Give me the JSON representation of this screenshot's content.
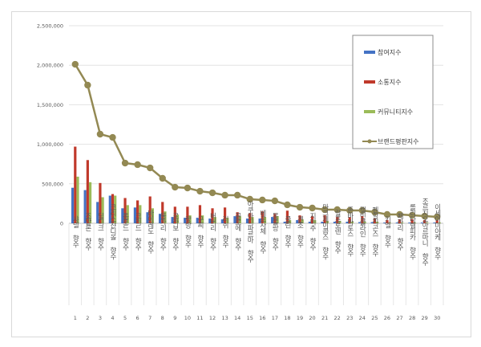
{
  "chart_data": {
    "type": "bar",
    "ylim": [
      0,
      2500000
    ],
    "yticks": [
      "0",
      "500,000",
      "1,000,000",
      "1,500,000",
      "2,000,000",
      "2,500,000"
    ],
    "grid": true,
    "legend_position": "top-right",
    "categories": [
      "1",
      "2",
      "3",
      "4",
      "5",
      "6",
      "7",
      "8",
      "9",
      "10",
      "11",
      "12",
      "13",
      "14",
      "15",
      "16",
      "17",
      "18",
      "19",
      "20",
      "21",
      "22",
      "23",
      "24",
      "25",
      "26",
      "27",
      "28",
      "29",
      "30"
    ],
    "category_names": [
      "샤넬 향수",
      "조말론 향수",
      "딥디크 향수",
      "크리스챤디올 향수",
      "톰포드 향수",
      "크리드 향수",
      "바이레도 향수",
      "불가리 향수",
      "르라보 향수",
      "랑방 향수",
      "구찌 향수",
      "버버리 향수",
      "러쉬 향수",
      "끌로에 향수",
      "아쿠아디파르마 향수",
      "베르사체 향수",
      "몽블랑 향수",
      "클린 향수",
      "겐조 향수",
      "지미추 향수",
      "마크제이콥스 향수",
      "랄프로렌 향수",
      "존바바토스 향수",
      "캘빈클라인 향수",
      "펜할리곤스 향수",
      "키엘 향수",
      "페라리 향수",
      "롤리타렘피카 향수",
      "조르지오아르마니 향수",
      "이세이미야케 향수"
    ],
    "series": [
      {
        "name": "참여지수",
        "kind": "bar",
        "color": "#4472c4",
        "values": [
          450000,
          420000,
          270000,
          350000,
          190000,
          200000,
          140000,
          120000,
          80000,
          70000,
          70000,
          60000,
          50000,
          90000,
          60000,
          60000,
          80000,
          20000,
          40000,
          20000,
          20000,
          20000,
          20000,
          15000,
          15000,
          10000,
          10000,
          10000,
          10000,
          10000
        ]
      },
      {
        "name": "소통지수",
        "kind": "bar",
        "color": "#c0392b",
        "values": [
          970000,
          800000,
          510000,
          370000,
          320000,
          290000,
          340000,
          270000,
          210000,
          210000,
          230000,
          190000,
          200000,
          140000,
          130000,
          150000,
          120000,
          160000,
          100000,
          90000,
          100000,
          80000,
          80000,
          90000,
          60000,
          40000,
          50000,
          50000,
          40000,
          40000
        ]
      },
      {
        "name": "커뮤니티지수",
        "kind": "bar",
        "color": "#9bbb59",
        "values": [
          590000,
          520000,
          330000,
          350000,
          230000,
          230000,
          190000,
          150000,
          110000,
          100000,
          100000,
          80000,
          70000,
          90000,
          80000,
          80000,
          90000,
          40000,
          50000,
          40000,
          30000,
          30000,
          20000,
          20000,
          20000,
          10000,
          10000,
          10000,
          10000,
          10000
        ]
      },
      {
        "name": "브랜드평판지수",
        "kind": "line",
        "color": "#938953",
        "values": [
          2012000,
          1748000,
          1128000,
          1087000,
          762000,
          742000,
          701000,
          569000,
          457000,
          447000,
          406000,
          386000,
          356000,
          356000,
          305000,
          295000,
          284000,
          234000,
          203000,
          193000,
          173000,
          173000,
          163000,
          163000,
          142000,
          112000,
          112000,
          102000,
          91000,
          81000
        ]
      }
    ]
  }
}
